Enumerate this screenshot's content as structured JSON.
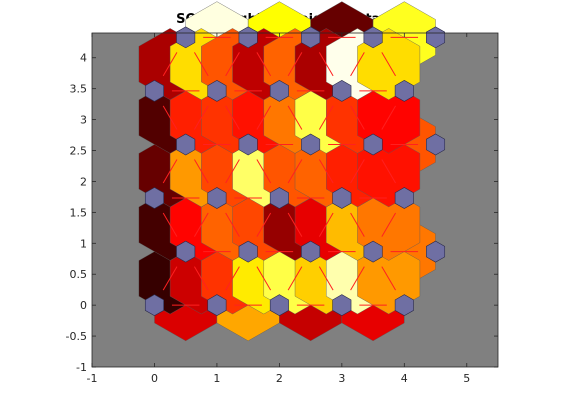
{
  "chart_data": {
    "type": "heatmap",
    "title": "SOM Neighbor Weight Distances",
    "xlabel": "",
    "ylabel": "",
    "xlim": [
      -1,
      5.5
    ],
    "ylim": [
      -1,
      4.4
    ],
    "xticks": [
      -1,
      0,
      1,
      2,
      3,
      4,
      5
    ],
    "yticks": [
      -1,
      -0.5,
      0,
      0.5,
      1,
      1.5,
      2,
      2.5,
      3,
      3.5,
      4
    ],
    "background_color": "#808080",
    "neuron_color": "#6f6fa3",
    "line_color": "#ff2020",
    "grid": {
      "rows": 6,
      "cols": 5,
      "topology": "hexagonal",
      "row_spacing": 0.866,
      "odd_row_offset": 0.5
    },
    "distance_scale": {
      "min": 0,
      "max": 1,
      "colormap": "hot-inverted"
    },
    "horizontal_distances": [
      [
        0.68,
        0.38,
        0.71,
        0.66
      ],
      [
        0.05,
        0.48,
        0.5,
        0.45
      ],
      [
        0.72,
        0.52,
        0.55,
        0.45
      ],
      [
        0.6,
        0.05,
        0.54,
        0.5
      ],
      [
        0.5,
        0.52,
        0.5,
        0.28
      ],
      [
        0.03,
        0.25,
        0.85,
        0.22
      ]
    ],
    "diagonal_distances": [
      [
        0.92,
        0.7,
        0.55,
        0.28,
        0.18,
        0.32,
        0.08,
        0.4
      ],
      [
        0.9,
        0.62,
        0.48,
        0.52,
        0.78,
        0.66,
        0.35,
        0.45
      ],
      [
        0.85,
        0.4,
        0.52,
        0.15,
        0.5,
        0.48,
        0.58,
        0.6
      ],
      [
        0.88,
        0.58,
        0.55,
        0.6,
        0.45,
        0.18,
        0.55,
        0.62
      ],
      [
        0.75,
        0.3,
        0.5,
        0.72,
        0.48,
        0.75,
        0.02,
        0.3
      ],
      [
        0.55,
        0.15,
        0.25,
        0.2,
        0.45,
        0.08,
        0.25,
        0.1
      ]
    ]
  }
}
